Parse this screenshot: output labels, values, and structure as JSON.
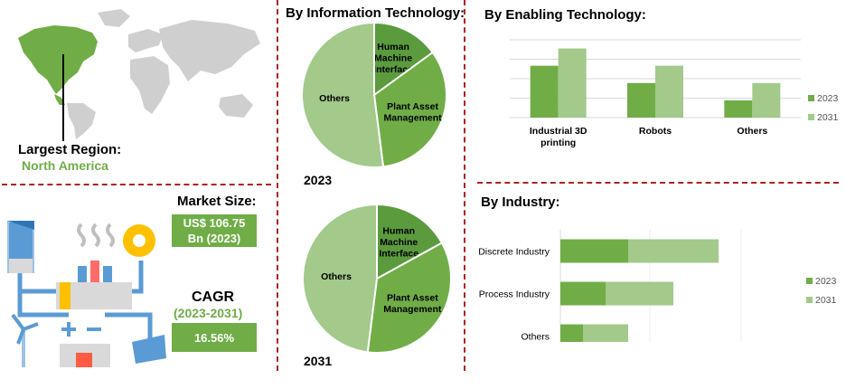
{
  "colors": {
    "dark": "#5b9b3e",
    "medium": "#70ad47",
    "light": "#a3c98b",
    "divider": "#b22222"
  },
  "region": {
    "label": "Largest Region:",
    "value": "North America"
  },
  "market": {
    "label": "Market Size:",
    "value_line1": "US$ 106.75",
    "value_line2": "Bn (2023)"
  },
  "cagr": {
    "label": "CAGR",
    "period": "(2023-2031)",
    "value": "16.56%"
  },
  "it": {
    "title": "By  Information Technology:"
  },
  "enabling": {
    "title": "By Enabling Technology:"
  },
  "industry": {
    "title": "By Industry:"
  },
  "icons": [
    "world-map",
    "smart-factory-illustration"
  ],
  "chart_data": [
    {
      "type": "pie",
      "id": "it-2023",
      "caption": "2023",
      "slices": [
        {
          "label": "Human Machine Interface",
          "value": 15
        },
        {
          "label": "Plant Asset Management",
          "value": 33
        },
        {
          "label": "Others",
          "value": 52
        }
      ]
    },
    {
      "type": "pie",
      "id": "it-2031",
      "caption": "2031",
      "slices": [
        {
          "label": "Human Machine Interface",
          "value": 17
        },
        {
          "label": "Plant Asset Management",
          "value": 35
        },
        {
          "label": "Others",
          "value": 48
        }
      ]
    },
    {
      "type": "bar",
      "id": "enabling",
      "categories": [
        "Industrial 3D printing",
        "Robots",
        "Others"
      ],
      "series": [
        {
          "name": "2023",
          "values": [
            3,
            2,
            1
          ]
        },
        {
          "name": "2031",
          "values": [
            4,
            3,
            2
          ]
        }
      ],
      "ylim": [
        0,
        4.5
      ],
      "grid": true,
      "legend": "right"
    },
    {
      "type": "bar",
      "orientation": "horizontal",
      "stacked": true,
      "id": "industry",
      "categories": [
        "Discrete Industry",
        "Process Industry",
        "Others"
      ],
      "series": [
        {
          "name": "2023",
          "values": [
            3,
            2,
            1
          ]
        },
        {
          "name": "2031",
          "values": [
            4,
            3,
            2
          ]
        }
      ],
      "xlim": [
        0,
        8
      ],
      "legend": "right"
    }
  ]
}
